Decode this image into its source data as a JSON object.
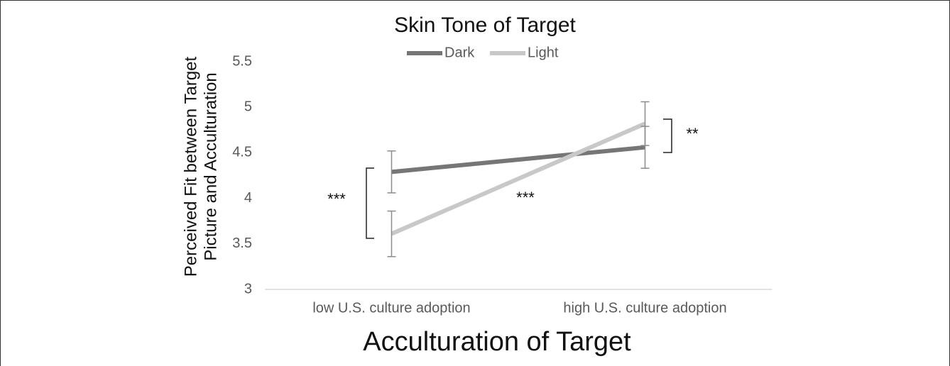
{
  "chart_data": {
    "type": "line",
    "title": "Skin Tone of Target",
    "xlabel": "Acculturation of Target",
    "ylabel": [
      "Perceived Fit between Target",
      "Picture and Acculturation"
    ],
    "categories": [
      "low U.S. culture adoption",
      "high U.S. culture adoption"
    ],
    "series": [
      {
        "name": "Dark",
        "color": "#767676",
        "values": [
          4.29,
          4.56
        ],
        "errors": [
          0.23,
          0.23
        ]
      },
      {
        "name": "Light",
        "color": "#c8c8c8",
        "values": [
          3.61,
          4.82
        ],
        "errors": [
          0.25,
          0.24
        ]
      }
    ],
    "ylim": [
      3,
      5.5
    ],
    "yticks": [
      3,
      3.5,
      4,
      4.5,
      5,
      5.5
    ],
    "legend": "top",
    "annotations": [
      "***",
      "***",
      "**"
    ]
  }
}
